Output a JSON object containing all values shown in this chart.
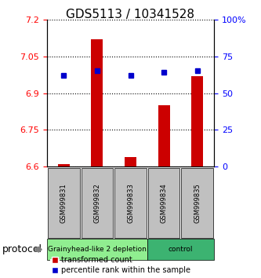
{
  "title": "GDS5113 / 10341528",
  "samples": [
    "GSM999831",
    "GSM999832",
    "GSM999833",
    "GSM999834",
    "GSM999835"
  ],
  "transformed_counts": [
    6.61,
    7.12,
    6.64,
    6.85,
    6.97
  ],
  "percentile_ranks": [
    62,
    65,
    62,
    64,
    65
  ],
  "ylim_left": [
    6.6,
    7.2
  ],
  "ylim_right": [
    0,
    100
  ],
  "yticks_left": [
    6.6,
    6.75,
    6.9,
    7.05,
    7.2
  ],
  "yticks_right": [
    0,
    25,
    50,
    75,
    100
  ],
  "ytick_labels_left": [
    "6.6",
    "6.75",
    "6.9",
    "7.05",
    "7.2"
  ],
  "ytick_labels_right": [
    "0",
    "25",
    "50",
    "75",
    "100%"
  ],
  "groups": [
    {
      "label": "Grainyhead-like 2 depletion",
      "samples": [
        0,
        1,
        2
      ],
      "color": "#90EE90"
    },
    {
      "label": "control",
      "samples": [
        3,
        4
      ],
      "color": "#3CB371"
    }
  ],
  "bar_color": "#CC0000",
  "dot_color": "#0000CC",
  "sample_bg_color": "#C0C0C0",
  "legend_red_label": "transformed count",
  "legend_blue_label": "percentile rank within the sample",
  "protocol_label": "protocol"
}
